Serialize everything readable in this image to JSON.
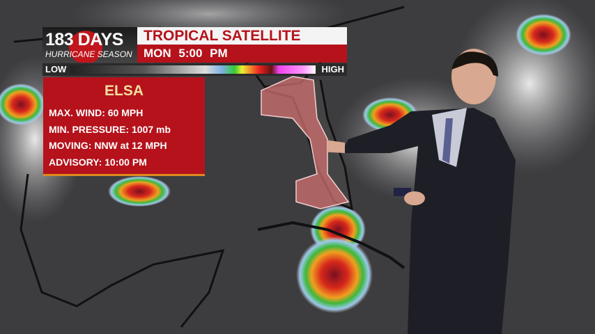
{
  "logo": {
    "days": "183 DAYS",
    "subtitle": "HURRICANE SEASON"
  },
  "header": {
    "title": "TROPICAL SATELLITE",
    "day": "MON",
    "time": "5:00 PM"
  },
  "scale": {
    "low": "LOW",
    "high": "HIGH"
  },
  "storm": {
    "name": "ELSA",
    "rows": [
      "MAX. WIND: 60 MPH",
      "MIN. PRESSURE: 1007 mb",
      "MOVING: NNW at 12 MPH",
      "ADVISORY: 10:00 PM"
    ]
  },
  "colors": {
    "brand_red": "#b5121b",
    "storm_name": "#f3dfa0",
    "warning_area": "#d07070"
  }
}
